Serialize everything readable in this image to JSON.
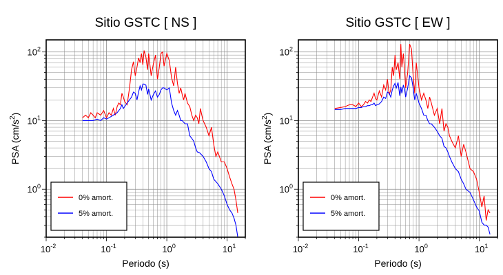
{
  "chart_data": [
    {
      "type": "line",
      "title": "Sitio GSTC [ NS ]",
      "xlabel": "Periodo (s)",
      "ylabel_main": "PSA (cm/s",
      "ylabel_sup": "2",
      "ylabel_close": ")",
      "xscale": "log",
      "yscale": "log",
      "xlim": [
        0.01,
        20
      ],
      "ylim": [
        0.2,
        150
      ],
      "grid": true,
      "legend_position": "bottom-left",
      "x_ticks": [
        {
          "base": "10",
          "exp": "-2"
        },
        {
          "base": "10",
          "exp": "-1"
        },
        {
          "base": "10",
          "exp": "0"
        },
        {
          "base": "10",
          "exp": "1"
        }
      ],
      "y_ticks": [
        {
          "base": "10",
          "exp": "0"
        },
        {
          "base": "10",
          "exp": "1"
        },
        {
          "base": "10",
          "exp": "2"
        }
      ],
      "series": [
        {
          "name": "0% amort.",
          "color": "#ff0000",
          "x": [
            0.04,
            0.045,
            0.05,
            0.055,
            0.06,
            0.065,
            0.07,
            0.08,
            0.09,
            0.1,
            0.11,
            0.12,
            0.13,
            0.14,
            0.15,
            0.16,
            0.17,
            0.18,
            0.19,
            0.2,
            0.22,
            0.24,
            0.26,
            0.28,
            0.3,
            0.32,
            0.34,
            0.36,
            0.38,
            0.4,
            0.42,
            0.45,
            0.48,
            0.5,
            0.55,
            0.6,
            0.65,
            0.7,
            0.75,
            0.8,
            0.85,
            0.9,
            1.0,
            1.1,
            1.2,
            1.3,
            1.4,
            1.5,
            1.6,
            1.7,
            1.8,
            1.9,
            2.0,
            2.2,
            2.4,
            2.6,
            2.8,
            3.0,
            3.2,
            3.4,
            3.6,
            3.8,
            4.0,
            4.5,
            5.0,
            5.5,
            6.0,
            6.5,
            7.0,
            8.0,
            9.0,
            10.0,
            11,
            12,
            13,
            14,
            15
          ],
          "y": [
            11,
            12,
            11,
            13,
            12,
            11,
            13,
            12,
            14,
            11,
            13,
            12,
            15,
            12,
            16,
            18,
            17,
            25,
            22,
            19,
            17,
            29,
            55,
            72,
            45,
            60,
            82,
            70,
            95,
            65,
            105,
            85,
            55,
            95,
            45,
            68,
            90,
            40,
            60,
            95,
            100,
            62,
            95,
            75,
            42,
            32,
            60,
            35,
            25,
            30,
            24,
            20,
            25,
            18,
            16,
            12,
            10,
            12,
            11,
            9,
            15,
            12,
            10,
            8,
            6,
            8,
            4.5,
            3,
            3.5,
            2.5,
            2.5,
            2,
            1.5,
            1.2,
            1,
            0.7,
            0.45
          ]
        },
        {
          "name": "5% amort.",
          "color": "#0000ff",
          "x": [
            0.04,
            0.05,
            0.06,
            0.07,
            0.08,
            0.09,
            0.1,
            0.11,
            0.12,
            0.13,
            0.14,
            0.15,
            0.16,
            0.17,
            0.18,
            0.19,
            0.2,
            0.22,
            0.24,
            0.26,
            0.28,
            0.3,
            0.32,
            0.34,
            0.36,
            0.38,
            0.4,
            0.42,
            0.45,
            0.48,
            0.5,
            0.55,
            0.6,
            0.65,
            0.7,
            0.75,
            0.8,
            0.85,
            0.9,
            1.0,
            1.1,
            1.2,
            1.3,
            1.4,
            1.5,
            1.6,
            1.7,
            1.8,
            2.0,
            2.2,
            2.4,
            2.6,
            2.8,
            3.0,
            3.2,
            3.5,
            4.0,
            4.5,
            5.0,
            5.5,
            6.0,
            7.0,
            8.0,
            9.0,
            10.0,
            11,
            12,
            13,
            14,
            15
          ],
          "y": [
            10,
            10,
            10,
            10.5,
            10,
            11,
            10.5,
            11,
            11.5,
            12,
            12.5,
            13,
            14,
            15,
            17,
            15,
            16,
            18,
            20,
            22,
            26,
            25,
            20,
            26,
            32,
            28,
            34,
            34,
            33,
            24,
            29,
            20,
            24,
            27,
            22,
            24,
            28,
            30,
            30,
            28,
            30,
            18,
            14,
            12,
            14,
            12,
            10,
            10,
            9,
            9,
            6,
            5.5,
            5,
            4,
            3.5,
            3.4,
            3,
            2.5,
            2,
            1.8,
            1.4,
            1.2,
            1,
            0.8,
            0.6,
            0.5,
            0.45,
            0.38,
            0.3,
            0.2
          ]
        }
      ]
    },
    {
      "type": "line",
      "title": "Sitio GSTC [ EW ]",
      "xlabel": "Periodo (s)",
      "ylabel_main": "PSA (cm/s",
      "ylabel_sup": "2",
      "ylabel_close": ")",
      "xscale": "log",
      "yscale": "log",
      "xlim": [
        0.01,
        20
      ],
      "ylim": [
        0.2,
        150
      ],
      "grid": true,
      "legend_position": "bottom-left",
      "x_ticks": [
        {
          "base": "10",
          "exp": "-2"
        },
        {
          "base": "10",
          "exp": "-1"
        },
        {
          "base": "10",
          "exp": "0"
        },
        {
          "base": "10",
          "exp": "1"
        }
      ],
      "y_ticks": [
        {
          "base": "10",
          "exp": "0"
        },
        {
          "base": "10",
          "exp": "1"
        },
        {
          "base": "10",
          "exp": "2"
        }
      ],
      "series": [
        {
          "name": "0% amort.",
          "color": "#ff0000",
          "x": [
            0.04,
            0.05,
            0.06,
            0.07,
            0.08,
            0.09,
            0.1,
            0.11,
            0.12,
            0.13,
            0.14,
            0.15,
            0.16,
            0.17,
            0.18,
            0.19,
            0.2,
            0.22,
            0.24,
            0.26,
            0.28,
            0.3,
            0.32,
            0.34,
            0.36,
            0.38,
            0.4,
            0.42,
            0.45,
            0.48,
            0.5,
            0.52,
            0.55,
            0.58,
            0.6,
            0.65,
            0.7,
            0.75,
            0.8,
            0.85,
            0.9,
            1.0,
            1.1,
            1.2,
            1.3,
            1.4,
            1.5,
            1.6,
            1.8,
            2.0,
            2.2,
            2.4,
            2.6,
            2.8,
            3.0,
            3.2,
            3.5,
            4.0,
            4.5,
            5.0,
            5.5,
            6.0,
            7.0,
            8.0,
            9.0,
            10.0,
            11,
            12,
            13,
            14,
            15
          ],
          "y": [
            15,
            15.5,
            16,
            17,
            17,
            16,
            18,
            16,
            17,
            19,
            18,
            20,
            19,
            22,
            25,
            21,
            20,
            27,
            22,
            33,
            28,
            40,
            24,
            28,
            60,
            45,
            90,
            55,
            70,
            40,
            130,
            60,
            95,
            50,
            30,
            50,
            130,
            110,
            45,
            25,
            70,
            30,
            20,
            25,
            20,
            15,
            22,
            18,
            12,
            15,
            9,
            15,
            7,
            9,
            8,
            6,
            5,
            4,
            6,
            3,
            4.5,
            3.5,
            2,
            1.8,
            1.4,
            0.9,
            0.55,
            0.8,
            0.35,
            0.5,
            0.45
          ]
        },
        {
          "name": "5% amort.",
          "color": "#0000ff",
          "x": [
            0.04,
            0.05,
            0.06,
            0.07,
            0.08,
            0.09,
            0.1,
            0.11,
            0.12,
            0.13,
            0.14,
            0.15,
            0.16,
            0.17,
            0.18,
            0.19,
            0.2,
            0.22,
            0.24,
            0.26,
            0.28,
            0.3,
            0.32,
            0.34,
            0.36,
            0.38,
            0.4,
            0.42,
            0.45,
            0.48,
            0.5,
            0.52,
            0.55,
            0.58,
            0.6,
            0.65,
            0.7,
            0.75,
            0.8,
            0.85,
            0.9,
            1.0,
            1.1,
            1.2,
            1.3,
            1.4,
            1.5,
            1.6,
            1.8,
            2.0,
            2.2,
            2.4,
            2.6,
            2.8,
            3.0,
            3.2,
            3.5,
            4.0,
            4.5,
            5.0,
            5.5,
            6.0,
            7.0,
            8.0,
            9.0,
            10.0,
            11,
            12,
            13,
            14,
            15
          ],
          "y": [
            14.5,
            14.5,
            15,
            15,
            15,
            15,
            15.5,
            15.5,
            16,
            16,
            16.5,
            16.5,
            17,
            17,
            18,
            16.5,
            17,
            17.5,
            19,
            22,
            21,
            26,
            25,
            22,
            28,
            32,
            35,
            30,
            36,
            23,
            31,
            25,
            33,
            28,
            22,
            30,
            45,
            42,
            30,
            20,
            25,
            18,
            15,
            12,
            12,
            10,
            9,
            9,
            8,
            7,
            6,
            5.5,
            4.2,
            4,
            3.5,
            3,
            2.5,
            2,
            1.8,
            1.4,
            1.2,
            1,
            0.9,
            0.7,
            0.55,
            0.48,
            0.33,
            0.3,
            0.3,
            0.28,
            0.22
          ]
        }
      ]
    }
  ]
}
